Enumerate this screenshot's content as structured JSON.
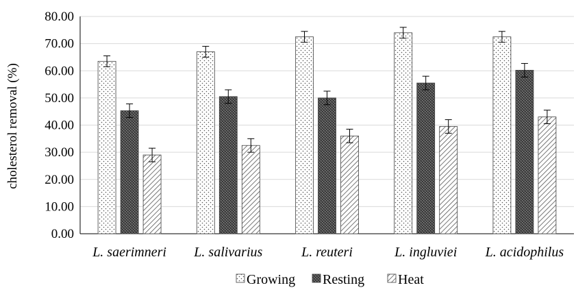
{
  "chart_data": {
    "type": "bar",
    "title": "",
    "xlabel": "",
    "ylabel": "cholesterol removal (%)",
    "ylim": [
      0,
      80
    ],
    "y_ticks": [
      "0.00",
      "10.00",
      "20.00",
      "30.00",
      "40.00",
      "50.00",
      "60.00",
      "70.00",
      "80.00"
    ],
    "grid": "horizontal",
    "legend_position": "bottom",
    "categories": [
      "L. saerimneri",
      "L. salivarius",
      "L. reuteri",
      "L. ingluviei",
      "L. acidophilus"
    ],
    "series": [
      {
        "name": "Growing",
        "pattern": "dots-light",
        "values": [
          63.5,
          67.0,
          72.5,
          74.0,
          72.5
        ],
        "errors": [
          2.0,
          2.0,
          2.0,
          2.0,
          2.0
        ]
      },
      {
        "name": "Resting",
        "pattern": "dark-dense",
        "values": [
          45.3,
          50.5,
          50.0,
          55.5,
          60.2
        ],
        "errors": [
          2.5,
          2.5,
          2.5,
          2.5,
          2.5
        ]
      },
      {
        "name": "Heat",
        "pattern": "diagonal-hatch",
        "values": [
          29.0,
          32.5,
          36.0,
          39.5,
          43.0
        ],
        "errors": [
          2.5,
          2.5,
          2.5,
          2.5,
          2.5
        ]
      }
    ]
  }
}
